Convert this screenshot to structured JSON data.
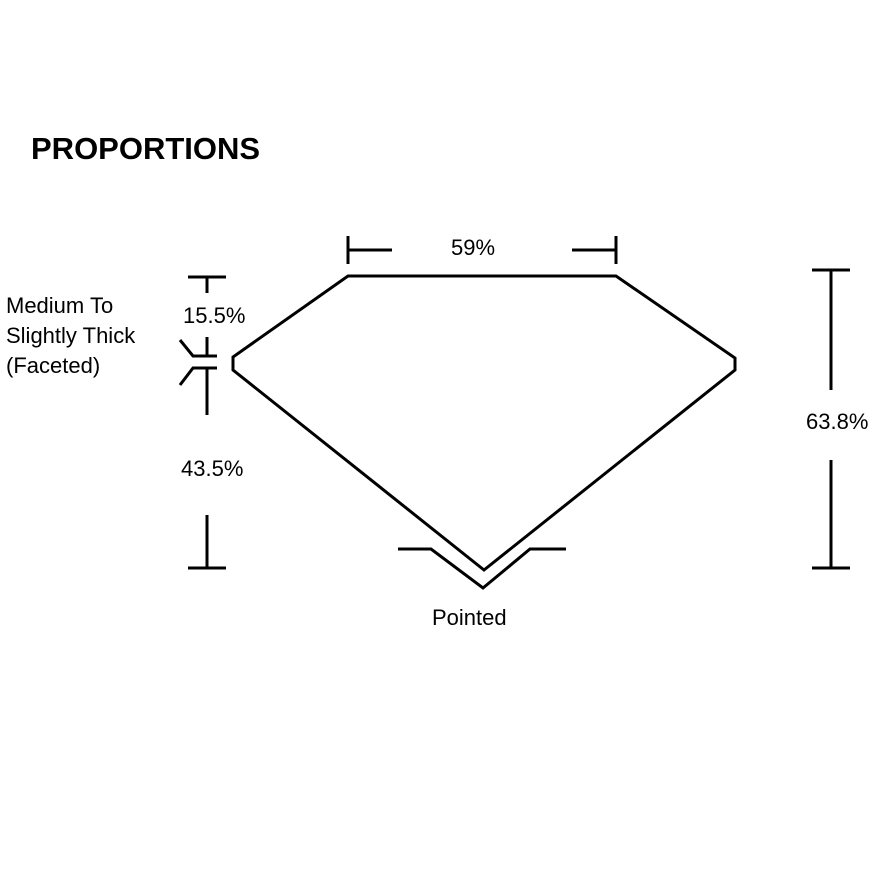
{
  "title": "PROPORTIONS",
  "labels": {
    "table": "59%",
    "crown": "15.5%",
    "pavilion": "43.5%",
    "depth": "63.8%",
    "girdle_line1": "Medium To",
    "girdle_line2": "Slightly Thick",
    "girdle_line3": "(Faceted)",
    "culet": "Pointed"
  }
}
